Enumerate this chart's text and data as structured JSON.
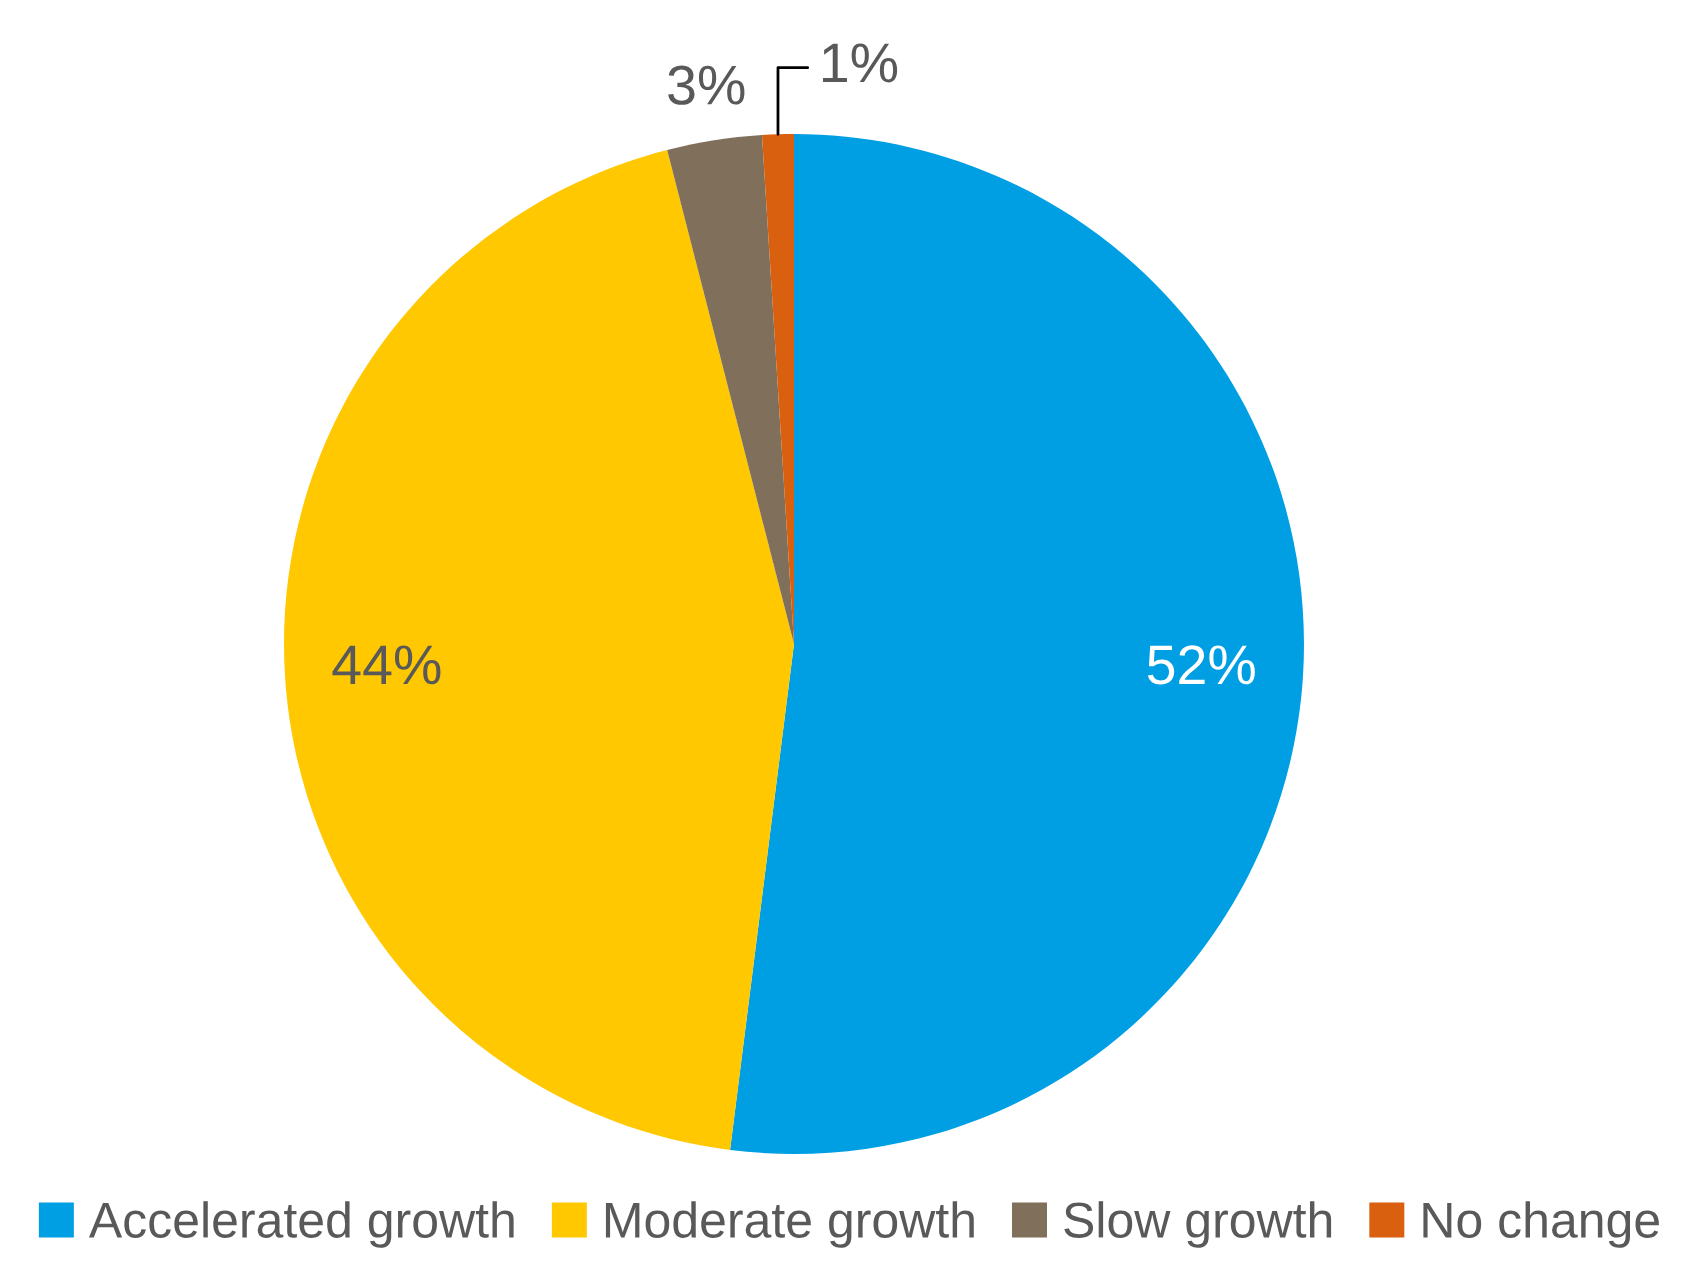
{
  "chart_data": {
    "type": "pie",
    "categories": [
      "Accelerated growth",
      "Moderate growth",
      "Slow growth",
      "No change"
    ],
    "values": [
      52,
      44,
      3,
      1
    ],
    "colors": [
      "#009fe3",
      "#ffc800",
      "#7f6f5b",
      "#d9600f"
    ],
    "value_labels": [
      "52%",
      "44%",
      "3%",
      "1%"
    ],
    "legend": "bottom"
  }
}
